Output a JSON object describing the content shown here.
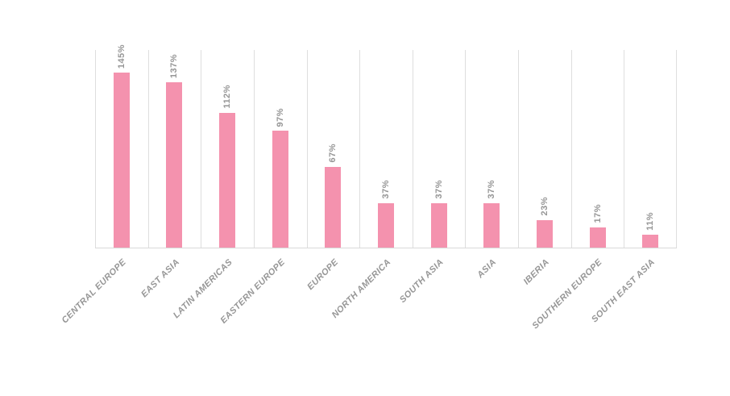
{
  "chart": {
    "title": "",
    "bar_color": "#f492ae",
    "label_color": "#969696",
    "gridline_color": "#dedede",
    "axis_color": "#d9d9d9",
    "background_color": "#ffffff"
  },
  "chart_data": {
    "type": "bar",
    "categories": [
      "CENTRAL EUROPE",
      "EAST ASIA",
      "LATIN AMERICAS",
      "EASTERN EUROPE",
      "EUROPE",
      "NORTH AMERICA",
      "SOUTH ASIA",
      "ASIA",
      "IBERIA",
      "SOUTHERN EUROPE",
      "SOUTH EAST ASIA"
    ],
    "values": [
      145,
      137,
      112,
      97,
      67,
      37,
      37,
      37,
      23,
      17,
      11
    ],
    "data_labels": [
      "145%",
      "137%",
      "112%",
      "97%",
      "67%",
      "37%",
      "37%",
      "37%",
      "23%",
      "17%",
      "11%"
    ],
    "title": "",
    "xlabel": "",
    "ylabel": "",
    "ylim": [
      0,
      164
    ],
    "grid": "vertical",
    "legend": "none",
    "data_label_rotation": -90,
    "category_label_rotation": -45
  }
}
